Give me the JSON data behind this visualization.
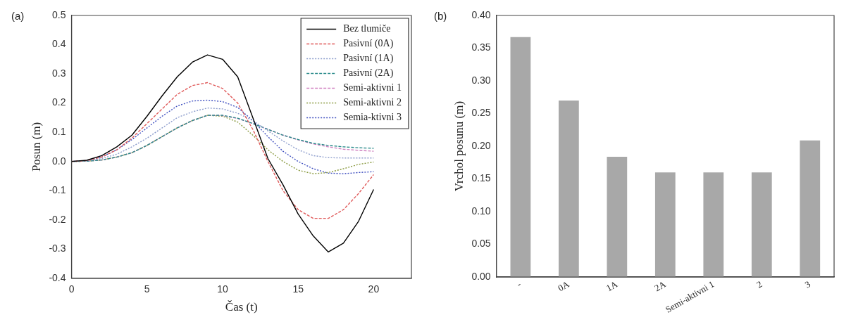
{
  "chart_data": [
    {
      "type": "line",
      "title": "(a)",
      "xlabel": "Čas (t)",
      "ylabel": "Posun (m)",
      "x": [
        0,
        1,
        2,
        3,
        4,
        5,
        6,
        7,
        8,
        9,
        10,
        11,
        12,
        13,
        14,
        15,
        16,
        17,
        18,
        19,
        20
      ],
      "xlim": [
        0,
        22.5
      ],
      "xticks": [
        0,
        5,
        10,
        15,
        20
      ],
      "ylim": [
        -0.4,
        0.5
      ],
      "yticks": [
        -0.4,
        -0.3,
        -0.2,
        -0.1,
        {
          "value": 0,
          "label": "0.0"
        },
        0.1,
        0.2,
        0.3,
        0.4,
        0.5
      ],
      "legend": "top right",
      "series": [
        {
          "name": "Bez tlumiče",
          "color": "#000000",
          "line_style": "solid",
          "values": [
            0,
            0.004,
            0.02,
            0.05,
            0.09,
            0.155,
            0.225,
            0.29,
            0.34,
            0.365,
            0.35,
            0.29,
            0.15,
            0.01,
            -0.08,
            -0.18,
            -0.255,
            -0.31,
            -0.28,
            -0.205,
            -0.096
          ]
        },
        {
          "name": "Pasivní (0A)",
          "color": "#e05a5a",
          "line_style": "dashed",
          "values": [
            0,
            0.003,
            0.015,
            0.04,
            0.08,
            0.13,
            0.18,
            0.23,
            0.26,
            0.27,
            0.25,
            0.2,
            0.11,
            0.0,
            -0.1,
            -0.165,
            -0.195,
            -0.195,
            -0.165,
            -0.11,
            -0.045
          ]
        },
        {
          "name": "Pasivní (1A)",
          "color": "#8c9ccc",
          "line_style": "dotted",
          "values": [
            0,
            0.002,
            0.01,
            0.025,
            0.05,
            0.08,
            0.115,
            0.15,
            0.17,
            0.183,
            0.18,
            0.165,
            0.14,
            0.105,
            0.07,
            0.04,
            0.02,
            0.013,
            0.012,
            0.012,
            0.012
          ]
        },
        {
          "name": "Pasivní (2A)",
          "color": "#2a8a8a",
          "line_style": "dashed",
          "values": [
            0,
            0.001,
            0.005,
            0.015,
            0.03,
            0.055,
            0.085,
            0.115,
            0.14,
            0.158,
            0.158,
            0.148,
            0.13,
            0.11,
            0.09,
            0.075,
            0.062,
            0.055,
            0.05,
            0.047,
            0.045
          ]
        },
        {
          "name": "Semi-aktivni 1",
          "color": "#d080c0",
          "line_style": "dashed",
          "values": [
            0,
            0.001,
            0.005,
            0.015,
            0.03,
            0.055,
            0.085,
            0.115,
            0.14,
            0.158,
            0.157,
            0.147,
            0.13,
            0.11,
            0.09,
            0.074,
            0.06,
            0.05,
            0.042,
            0.038,
            0.035
          ]
        },
        {
          "name": "Semi-aktivni 2",
          "color": "#8a9a40",
          "line_style": "dotted",
          "values": [
            0,
            0.001,
            0.005,
            0.015,
            0.03,
            0.055,
            0.085,
            0.115,
            0.14,
            0.158,
            0.155,
            0.135,
            0.09,
            0.04,
            0.0,
            -0.03,
            -0.042,
            -0.038,
            -0.025,
            -0.01,
            -0.002
          ]
        },
        {
          "name": "Semia-ktivni 3",
          "color": "#4050c0",
          "line_style": "dotted",
          "values": [
            0,
            0.003,
            0.015,
            0.04,
            0.075,
            0.115,
            0.155,
            0.19,
            0.207,
            0.21,
            0.205,
            0.185,
            0.14,
            0.085,
            0.035,
            0.0,
            -0.025,
            -0.04,
            -0.042,
            -0.038,
            -0.035
          ]
        }
      ]
    },
    {
      "type": "bar",
      "title": "(b)",
      "ylabel": "Vrchol posunu (m)",
      "categories": [
        "-",
        "0A",
        "1A",
        "2A",
        "Semi-aktivni 1",
        "2",
        "3"
      ],
      "values": [
        0.367,
        0.27,
        0.184,
        0.16,
        0.16,
        0.16,
        0.209
      ],
      "color": "#a8a8a8",
      "ylim": [
        0,
        0.4
      ],
      "yticks": [
        {
          "value": 0,
          "label": "0.00"
        },
        0.05,
        {
          "value": 0.1,
          "label": "0.10"
        },
        0.15,
        {
          "value": 0.2,
          "label": "0.20"
        },
        0.25,
        {
          "value": 0.3,
          "label": "0.30"
        },
        0.35,
        {
          "value": 0.4,
          "label": "0.40"
        }
      ]
    }
  ]
}
